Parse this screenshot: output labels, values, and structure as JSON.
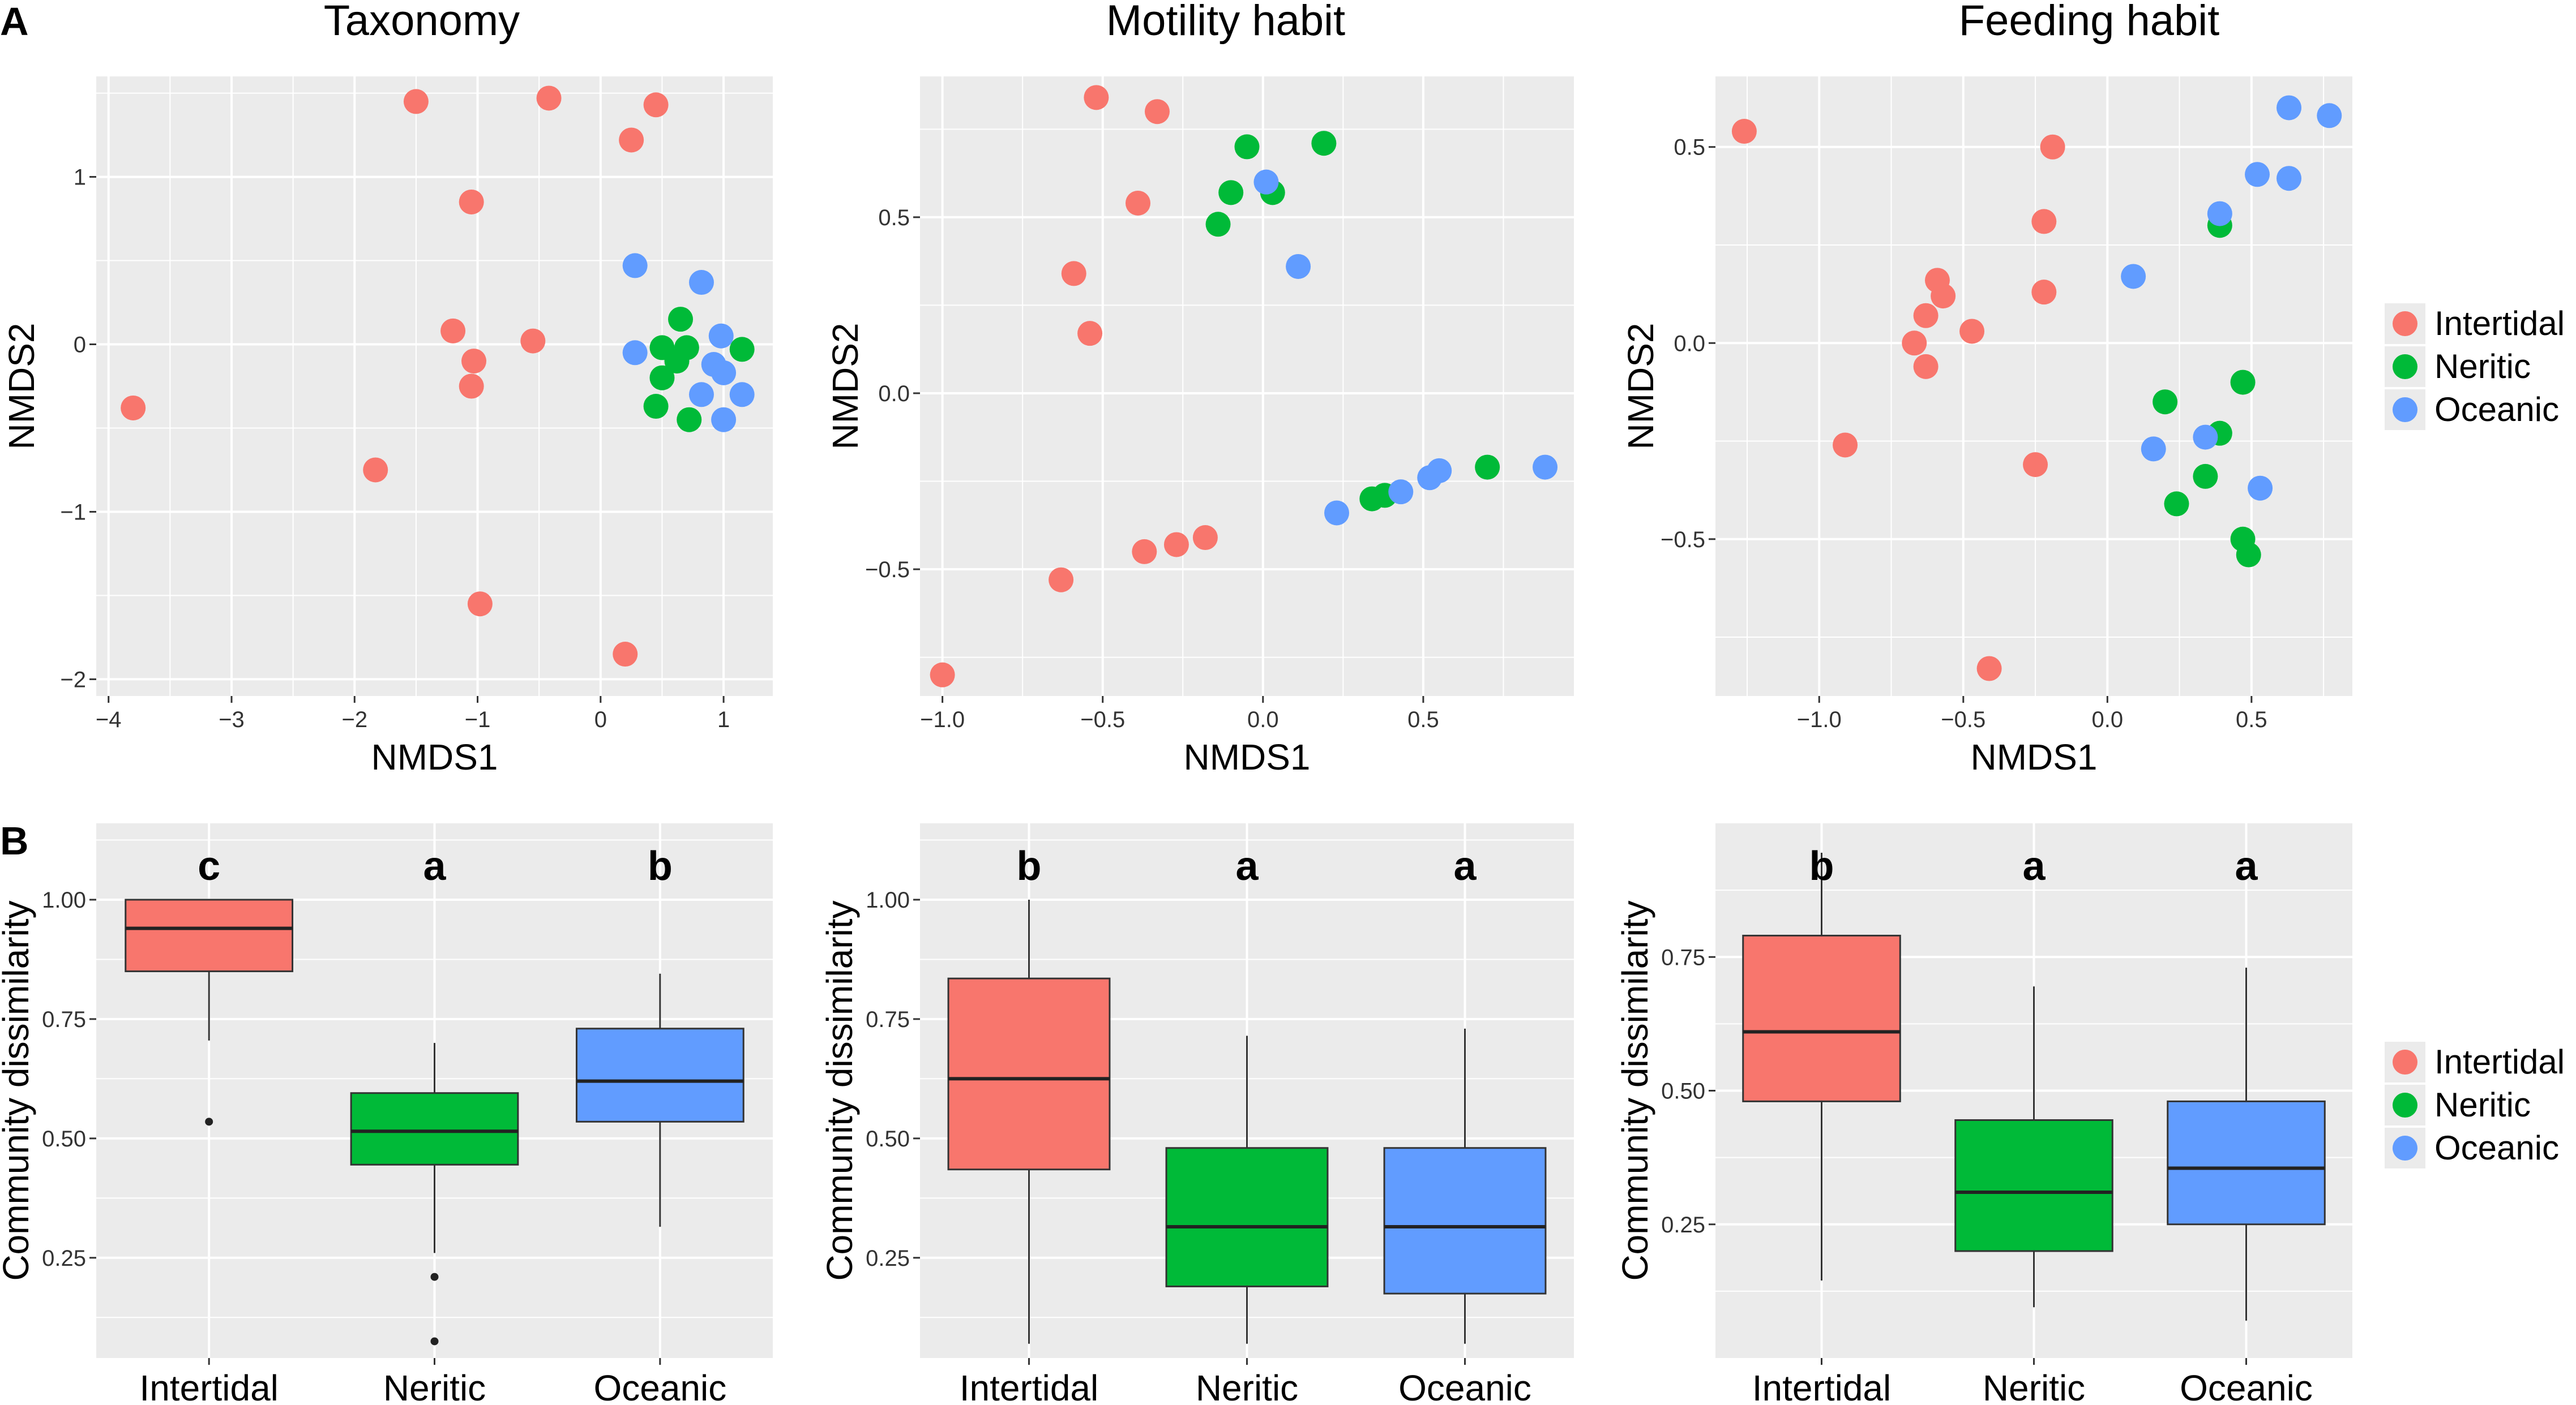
{
  "panel_labels": {
    "a": "A",
    "b": "B"
  },
  "colors": {
    "Intertidal": "#F8766D",
    "Neritic": "#00BA38",
    "Oceanic": "#619CFF",
    "panel_bg": "#EBEBEB",
    "grid": "#FFFFFF"
  },
  "legend": {
    "entries": [
      "Intertidal",
      "Neritic",
      "Oceanic"
    ]
  },
  "chart_data": [
    {
      "type": "scatter",
      "title": "Taxonomy",
      "xlabel": "NMDS1",
      "ylabel": "NMDS2",
      "xlim": [
        -4.1,
        1.4
      ],
      "ylim": [
        -2.1,
        1.6
      ],
      "xticks": [
        -4,
        -3,
        -2,
        -1,
        0,
        1
      ],
      "xtick_labels": [
        "−4",
        "−3",
        "−2",
        "−1",
        "0",
        "1"
      ],
      "yticks": [
        -2,
        -1,
        0,
        1
      ],
      "ytick_labels": [
        "−2",
        "−1",
        "0",
        "1"
      ],
      "series": [
        {
          "name": "Intertidal",
          "points": [
            [
              -3.8,
              -0.38
            ],
            [
              -1.83,
              -0.75
            ],
            [
              -1.5,
              1.45
            ],
            [
              -0.42,
              1.47
            ],
            [
              0.45,
              1.43
            ],
            [
              0.25,
              1.22
            ],
            [
              -1.05,
              0.85
            ],
            [
              -1.2,
              0.08
            ],
            [
              -1.03,
              -0.1
            ],
            [
              -1.05,
              -0.25
            ],
            [
              -0.55,
              0.02
            ],
            [
              -0.98,
              -1.55
            ],
            [
              0.2,
              -1.85
            ]
          ]
        },
        {
          "name": "Neritic",
          "points": [
            [
              0.65,
              0.15
            ],
            [
              0.5,
              -0.02
            ],
            [
              0.7,
              -0.02
            ],
            [
              0.62,
              -0.1
            ],
            [
              0.5,
              -0.2
            ],
            [
              0.45,
              -0.37
            ],
            [
              0.72,
              -0.45
            ],
            [
              1.15,
              -0.03
            ]
          ]
        },
        {
          "name": "Oceanic",
          "points": [
            [
              0.28,
              0.47
            ],
            [
              0.82,
              0.37
            ],
            [
              0.28,
              -0.05
            ],
            [
              0.98,
              0.05
            ],
            [
              0.92,
              -0.12
            ],
            [
              1.0,
              -0.17
            ],
            [
              0.82,
              -0.3
            ],
            [
              1.15,
              -0.3
            ],
            [
              1.0,
              -0.45
            ]
          ]
        }
      ]
    },
    {
      "type": "scatter",
      "title": "Motility habit",
      "xlabel": "NMDS1",
      "ylabel": "NMDS2",
      "xlim": [
        -1.07,
        0.97
      ],
      "ylim": [
        -0.86,
        0.9
      ],
      "xticks": [
        -1.0,
        -0.5,
        0.0,
        0.5
      ],
      "xtick_labels": [
        "−1.0",
        "−0.5",
        "0.0",
        "0.5"
      ],
      "yticks": [
        -0.5,
        0.0,
        0.5
      ],
      "ytick_labels": [
        "−0.5",
        "0.0",
        "0.5"
      ],
      "series": [
        {
          "name": "Intertidal",
          "points": [
            [
              -0.52,
              0.84
            ],
            [
              -0.33,
              0.8
            ],
            [
              -0.39,
              0.54
            ],
            [
              -0.59,
              0.34
            ],
            [
              -0.54,
              0.17
            ],
            [
              -0.37,
              -0.45
            ],
            [
              -0.27,
              -0.43
            ],
            [
              -0.18,
              -0.41
            ],
            [
              -0.63,
              -0.53
            ],
            [
              -1.0,
              -0.8
            ]
          ]
        },
        {
          "name": "Neritic",
          "points": [
            [
              -0.05,
              0.7
            ],
            [
              0.19,
              0.71
            ],
            [
              -0.1,
              0.57
            ],
            [
              0.03,
              0.57
            ],
            [
              -0.14,
              0.48
            ],
            [
              0.34,
              -0.3
            ],
            [
              0.38,
              -0.29
            ],
            [
              0.7,
              -0.21
            ]
          ]
        },
        {
          "name": "Oceanic",
          "points": [
            [
              0.01,
              0.6
            ],
            [
              0.11,
              0.36
            ],
            [
              0.23,
              -0.34
            ],
            [
              0.43,
              -0.28
            ],
            [
              0.52,
              -0.24
            ],
            [
              0.55,
              -0.22
            ],
            [
              0.88,
              -0.21
            ]
          ]
        }
      ]
    },
    {
      "type": "scatter",
      "title": "Feeding habit",
      "xlabel": "NMDS1",
      "ylabel": "NMDS2",
      "xlim": [
        -1.36,
        0.85
      ],
      "ylim": [
        -0.9,
        0.68
      ],
      "xticks": [
        -1.0,
        -0.5,
        0.0,
        0.5
      ],
      "xtick_labels": [
        "−1.0",
        "−0.5",
        "0.0",
        "0.5"
      ],
      "yticks": [
        -0.5,
        0.0,
        0.5
      ],
      "ytick_labels": [
        "−0.5",
        "0.0",
        "0.5"
      ],
      "series": [
        {
          "name": "Intertidal",
          "points": [
            [
              -1.26,
              0.54
            ],
            [
              -0.19,
              0.5
            ],
            [
              -0.22,
              0.31
            ],
            [
              -0.22,
              0.13
            ],
            [
              -0.59,
              0.16
            ],
            [
              -0.57,
              0.12
            ],
            [
              -0.63,
              0.07
            ],
            [
              -0.47,
              0.03
            ],
            [
              -0.67,
              0.0
            ],
            [
              -0.63,
              -0.06
            ],
            [
              -0.91,
              -0.26
            ],
            [
              -0.25,
              -0.31
            ],
            [
              -0.41,
              -0.83
            ]
          ]
        },
        {
          "name": "Neritic",
          "points": [
            [
              0.39,
              0.3
            ],
            [
              0.2,
              -0.15
            ],
            [
              0.47,
              -0.1
            ],
            [
              0.39,
              -0.23
            ],
            [
              0.34,
              -0.34
            ],
            [
              0.24,
              -0.41
            ],
            [
              0.47,
              -0.5
            ],
            [
              0.49,
              -0.54
            ]
          ]
        },
        {
          "name": "Oceanic",
          "points": [
            [
              0.63,
              0.6
            ],
            [
              0.77,
              0.58
            ],
            [
              0.52,
              0.43
            ],
            [
              0.63,
              0.42
            ],
            [
              0.39,
              0.33
            ],
            [
              0.09,
              0.17
            ],
            [
              0.16,
              -0.27
            ],
            [
              0.34,
              -0.24
            ],
            [
              0.53,
              -0.37
            ]
          ]
        }
      ]
    },
    {
      "type": "box",
      "title": "",
      "xlabel": "",
      "ylabel": "Community dissimilarity",
      "ylim": [
        0.04,
        1.16
      ],
      "yticks": [
        0.25,
        0.5,
        0.75,
        1.0
      ],
      "ytick_labels": [
        "0.25",
        "0.50",
        "0.75",
        "1.00"
      ],
      "categories": [
        "Intertidal",
        "Neritic",
        "Oceanic"
      ],
      "letters": [
        "c",
        "a",
        "b"
      ],
      "boxes": [
        {
          "whisker_low": 0.705,
          "q1": 0.85,
          "median": 0.94,
          "q3": 1.0,
          "whisker_high": 1.0,
          "outliers": [
            0.535
          ]
        },
        {
          "whisker_low": 0.26,
          "q1": 0.445,
          "median": 0.515,
          "q3": 0.595,
          "whisker_high": 0.7,
          "outliers": [
            0.21,
            0.075
          ]
        },
        {
          "whisker_low": 0.315,
          "q1": 0.535,
          "median": 0.62,
          "q3": 0.73,
          "whisker_high": 0.845,
          "outliers": []
        }
      ]
    },
    {
      "type": "box",
      "title": "",
      "xlabel": "",
      "ylabel": "Community dissimilarity",
      "ylim": [
        0.04,
        1.16
      ],
      "yticks": [
        0.25,
        0.5,
        0.75,
        1.0
      ],
      "ytick_labels": [
        "0.25",
        "0.50",
        "0.75",
        "1.00"
      ],
      "categories": [
        "Intertidal",
        "Neritic",
        "Oceanic"
      ],
      "letters": [
        "b",
        "a",
        "a"
      ],
      "boxes": [
        {
          "whisker_low": 0.07,
          "q1": 0.435,
          "median": 0.625,
          "q3": 0.835,
          "whisker_high": 1.0,
          "outliers": []
        },
        {
          "whisker_low": 0.07,
          "q1": 0.19,
          "median": 0.315,
          "q3": 0.48,
          "whisker_high": 0.715,
          "outliers": []
        },
        {
          "whisker_low": 0.07,
          "q1": 0.175,
          "median": 0.315,
          "q3": 0.48,
          "whisker_high": 0.73,
          "outliers": []
        }
      ]
    },
    {
      "type": "box",
      "title": "",
      "xlabel": "",
      "ylabel": "Community dissimilarity",
      "ylim": [
        0.0,
        1.0
      ],
      "yticks": [
        0.25,
        0.5,
        0.75
      ],
      "ytick_labels": [
        "0.25",
        "0.50",
        "0.75"
      ],
      "categories": [
        "Intertidal",
        "Neritic",
        "Oceanic"
      ],
      "letters": [
        "b",
        "a",
        "a"
      ],
      "boxes": [
        {
          "whisker_low": 0.145,
          "q1": 0.48,
          "median": 0.61,
          "q3": 0.79,
          "whisker_high": 0.945,
          "outliers": []
        },
        {
          "whisker_low": 0.095,
          "q1": 0.2,
          "median": 0.31,
          "q3": 0.445,
          "whisker_high": 0.695,
          "outliers": []
        },
        {
          "whisker_low": 0.07,
          "q1": 0.25,
          "median": 0.355,
          "q3": 0.48,
          "whisker_high": 0.73,
          "outliers": []
        }
      ]
    }
  ]
}
